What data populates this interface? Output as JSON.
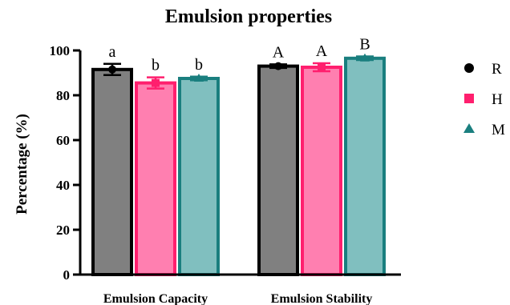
{
  "chart_data": {
    "type": "bar",
    "title": "Emulsion properties",
    "xlabel": "",
    "ylabel": "Percentage (%)",
    "ylim": [
      0,
      100
    ],
    "yticks": [
      0,
      20,
      40,
      60,
      80,
      100
    ],
    "categories": [
      "Emulsion Capacity",
      "Emulsion Stability"
    ],
    "series": [
      {
        "name": "R",
        "values": [
          91.5,
          93.0
        ],
        "errors": [
          2.5,
          0.8
        ],
        "labels": [
          "a",
          "A"
        ],
        "fill": "#808080",
        "stroke": "#000000",
        "marker": "circle"
      },
      {
        "name": "H",
        "values": [
          85.5,
          92.5
        ],
        "errors": [
          2.5,
          1.8
        ],
        "labels": [
          "b",
          "A"
        ],
        "fill": "#ff7fb0",
        "stroke": "#ff1f6e",
        "marker": "square"
      },
      {
        "name": "M",
        "values": [
          87.5,
          96.5
        ],
        "errors": [
          0.8,
          0.8
        ],
        "labels": [
          "b",
          "B"
        ],
        "fill": "#80bfbf",
        "stroke": "#1a7f7f",
        "marker": "triangle"
      }
    ],
    "legend": "right",
    "grid": false
  }
}
